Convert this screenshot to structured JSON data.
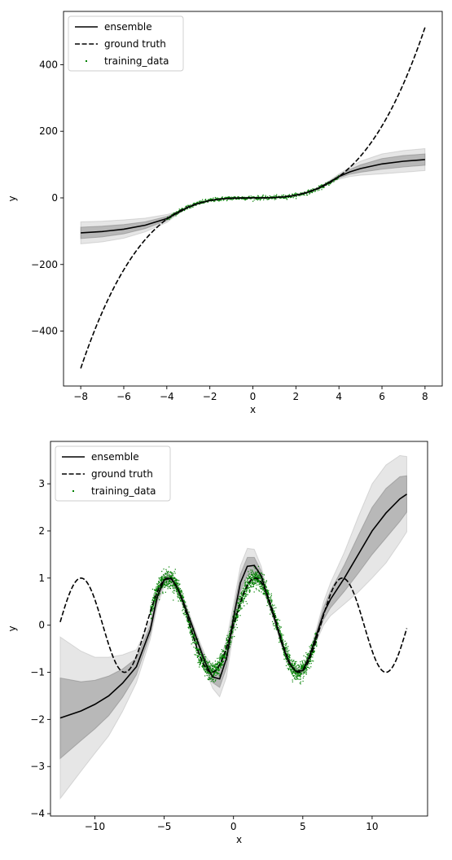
{
  "chart_data": [
    {
      "type": "line",
      "xlabel": "x",
      "ylabel": "y",
      "xlim": [
        -8.8,
        8.8
      ],
      "ylim": [
        -565,
        560
      ],
      "xticks": [
        -8,
        -6,
        -4,
        -2,
        0,
        2,
        4,
        6,
        8
      ],
      "xtick_labels": [
        "−8",
        "−6",
        "−4",
        "−2",
        "0",
        "2",
        "4",
        "6",
        "8"
      ],
      "yticks": [
        -400,
        -200,
        0,
        200,
        400
      ],
      "ytick_labels": [
        "−400",
        "−200",
        "0",
        "200",
        "400"
      ],
      "legend": {
        "placement": "upper-left",
        "entries": [
          {
            "label": "ensemble",
            "style": "solid"
          },
          {
            "label": "ground truth",
            "style": "dashed"
          },
          {
            "label": "training_data",
            "style": "points"
          }
        ]
      },
      "colors": {
        "ensemble": "#000000",
        "ground_truth": "#000000",
        "training_data": "#008000",
        "band": "#808080"
      },
      "ensemble": {
        "x": [
          -8,
          -7,
          -6,
          -5,
          -4,
          -3.5,
          -3,
          -2.5,
          -2,
          -1.5,
          -1,
          -0.5,
          0,
          0.5,
          1,
          1.5,
          2,
          2.5,
          3,
          3.5,
          4,
          4.5,
          5,
          6,
          7,
          8
        ],
        "y": [
          -105,
          -101,
          -94,
          -82,
          -62,
          -45,
          -28,
          -16,
          -8,
          -3.4,
          -1,
          -0.2,
          0,
          0.2,
          1,
          3.4,
          8,
          16,
          28,
          45,
          64,
          78,
          88,
          102,
          110,
          115
        ]
      },
      "band_inner": {
        "x": [
          -8,
          -7,
          -6,
          -5,
          -4,
          -3.5,
          -3,
          -2.5,
          -2,
          -1.5,
          -1,
          -0.5,
          0,
          0.5,
          1,
          1.5,
          2,
          2.5,
          3,
          3.5,
          4,
          4.5,
          5,
          6,
          7,
          8
        ],
        "lower": [
          -122,
          -117,
          -108,
          -92,
          -68,
          -47,
          -29,
          -17,
          -8.5,
          -3.6,
          -1.1,
          -0.2,
          0,
          0.2,
          0.9,
          3.2,
          7.5,
          15,
          27,
          43,
          60,
          71,
          77,
          86,
          93,
          98
        ],
        "upper": [
          -88,
          -85,
          -80,
          -72,
          -56,
          -43,
          -27,
          -15,
          -7.5,
          -3.2,
          -0.9,
          -0.2,
          0,
          0.2,
          1.1,
          3.6,
          8.5,
          17,
          29,
          47,
          68,
          85,
          99,
          118,
          127,
          132
        ]
      },
      "band_outer": {
        "x": [
          -8,
          -7,
          -6,
          -5,
          -4,
          -3.5,
          -3,
          -2.5,
          -2,
          -1.5,
          -1,
          -0.5,
          0,
          0.5,
          1,
          1.5,
          2,
          2.5,
          3,
          3.5,
          4,
          4.5,
          5,
          6,
          7,
          8
        ],
        "lower": [
          -138,
          -132,
          -121,
          -102,
          -74,
          -49,
          -30,
          -18,
          -9,
          -3.8,
          -1.2,
          -0.2,
          0,
          0.2,
          0.8,
          3,
          7,
          14,
          26,
          41,
          56,
          64,
          68,
          72,
          77,
          82
        ],
        "upper": [
          -72,
          -70,
          -66,
          -61,
          -50,
          -41,
          -26,
          -14,
          -7,
          -3,
          -0.8,
          -0.2,
          0,
          0.2,
          1.2,
          3.8,
          9,
          18,
          30,
          49,
          72,
          92,
          110,
          132,
          142,
          148
        ]
      },
      "ground_truth": {
        "function": "x^3",
        "x_range": [
          -8,
          8
        ]
      },
      "training_data": {
        "function": "x^3",
        "x_range": [
          -4,
          4
        ],
        "noise_sd": 3
      }
    },
    {
      "type": "line",
      "xlabel": "x",
      "ylabel": "y",
      "xlim": [
        -13.2,
        14.0
      ],
      "ylim": [
        -4.05,
        3.9
      ],
      "xticks": [
        -10,
        -5,
        0,
        5,
        10
      ],
      "xtick_labels": [
        "−10",
        "−5",
        "0",
        "5",
        "10"
      ],
      "yticks": [
        -4,
        -3,
        -2,
        -1,
        0,
        1,
        2,
        3
      ],
      "ytick_labels": [
        "−4",
        "−3",
        "−2",
        "−1",
        "0",
        "1",
        "2",
        "3"
      ],
      "legend": {
        "placement": "upper-left",
        "entries": [
          {
            "label": "ensemble",
            "style": "solid"
          },
          {
            "label": "ground truth",
            "style": "dashed"
          },
          {
            "label": "training_data",
            "style": "points"
          }
        ]
      },
      "colors": {
        "ensemble": "#000000",
        "ground_truth": "#000000",
        "training_data": "#008000",
        "band": "#808080"
      },
      "ensemble": {
        "x": [
          -12.5,
          -11,
          -10,
          -9,
          -8,
          -7,
          -6,
          -5.5,
          -5,
          -4.5,
          -4,
          -3.5,
          -3,
          -2.5,
          -2,
          -1.5,
          -1,
          -0.5,
          0,
          0.5,
          1,
          1.5,
          2,
          2.5,
          3,
          3.5,
          4,
          4.5,
          5,
          5.5,
          6,
          6.5,
          7,
          8,
          9,
          10,
          11,
          12,
          12.5
        ],
        "y": [
          -1.97,
          -1.82,
          -1.68,
          -1.5,
          -1.23,
          -0.88,
          -0.1,
          0.6,
          0.96,
          1.0,
          0.76,
          0.4,
          0.0,
          -0.42,
          -0.82,
          -1.1,
          -1.14,
          -0.7,
          0.15,
          0.9,
          1.25,
          1.27,
          1.05,
          0.55,
          0.1,
          -0.4,
          -0.8,
          -0.98,
          -0.96,
          -0.65,
          -0.2,
          0.25,
          0.55,
          1.0,
          1.5,
          2.0,
          2.38,
          2.68,
          2.78
        ]
      },
      "band_inner": {
        "x": [
          -12.5,
          -11,
          -10,
          -9,
          -8,
          -7,
          -6,
          -5.5,
          -5,
          -4.5,
          -4,
          -3.5,
          -3,
          -2.5,
          -2,
          -1.5,
          -1,
          -0.5,
          0,
          0.5,
          1,
          1.5,
          2,
          2.5,
          3,
          3.5,
          4,
          4.5,
          5,
          5.5,
          6,
          6.5,
          7,
          8,
          9,
          10,
          11,
          12,
          12.5
        ],
        "lower": [
          -2.83,
          -2.45,
          -2.2,
          -1.92,
          -1.53,
          -1.05,
          -0.2,
          0.5,
          0.89,
          0.94,
          0.7,
          0.35,
          -0.05,
          -0.48,
          -0.9,
          -1.22,
          -1.32,
          -0.9,
          0.0,
          0.72,
          1.06,
          1.1,
          0.95,
          0.5,
          0.06,
          -0.44,
          -0.84,
          -1.02,
          -1.0,
          -0.7,
          -0.27,
          0.12,
          0.37,
          0.72,
          1.1,
          1.5,
          1.85,
          2.2,
          2.4
        ]
      },
      "band_inner_upper": [
        -1.12,
        -1.2,
        -1.17,
        -1.08,
        -0.93,
        -0.7,
        0.0,
        0.7,
        1.03,
        1.06,
        0.82,
        0.45,
        0.05,
        -0.36,
        -0.74,
        -0.98,
        -0.96,
        -0.5,
        0.3,
        1.08,
        1.44,
        1.44,
        1.15,
        0.6,
        0.14,
        -0.36,
        -0.76,
        -0.94,
        -0.92,
        -0.6,
        -0.13,
        0.38,
        0.73,
        1.28,
        1.9,
        2.5,
        2.9,
        3.15,
        3.17
      ],
      "band_outer_lower": [
        -3.68,
        -3.1,
        -2.72,
        -2.35,
        -1.83,
        -1.22,
        -0.3,
        0.4,
        0.82,
        0.88,
        0.64,
        0.3,
        -0.1,
        -0.54,
        -0.98,
        -1.34,
        -1.52,
        -1.1,
        -0.15,
        0.54,
        0.87,
        0.93,
        0.85,
        0.45,
        0.02,
        -0.48,
        -0.88,
        -1.06,
        -1.04,
        -0.75,
        -0.34,
        0.0,
        0.2,
        0.45,
        0.7,
        1.0,
        1.32,
        1.75,
        1.98
      ],
      "band_outer_upper": [
        -0.25,
        -0.55,
        -0.68,
        -0.68,
        -0.63,
        -0.52,
        0.1,
        0.8,
        1.1,
        1.12,
        0.88,
        0.5,
        0.1,
        -0.3,
        -0.66,
        -0.86,
        -0.76,
        -0.3,
        0.45,
        1.26,
        1.63,
        1.61,
        1.25,
        0.65,
        0.18,
        -0.32,
        -0.72,
        -0.9,
        -0.88,
        -0.55,
        -0.06,
        0.5,
        0.9,
        1.55,
        2.3,
        3.0,
        3.4,
        3.6,
        3.58
      ],
      "ground_truth": {
        "function": "sin(x)",
        "x_range": [
          -12.5,
          12.5
        ]
      },
      "training_data": {
        "function": "sin(x)",
        "x_range": [
          -6,
          6
        ],
        "noise_sd": 0.1
      }
    }
  ]
}
